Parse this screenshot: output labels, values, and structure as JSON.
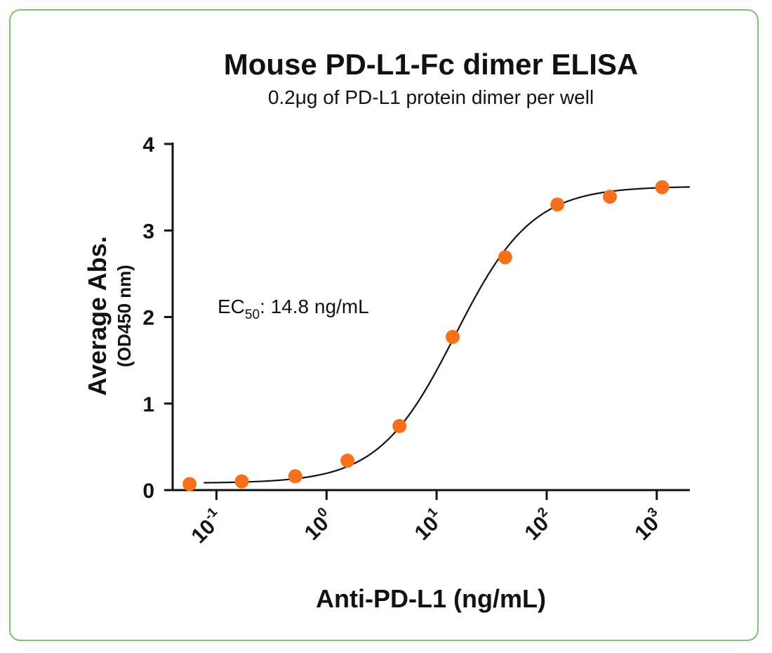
{
  "chart_data": {
    "type": "scatter",
    "title": "Mouse PD-L1-Fc dimer ELISA",
    "subtitle": "0.2μg of PD-L1 protein dimer per well",
    "xlabel": "Anti-PD-L1 (ng/mL)",
    "ylabel": "Average Abs.",
    "ylabel_sub": "(OD450 nm)",
    "x_scale": "log10",
    "xlim": [
      0.04,
      2000
    ],
    "ylim": [
      0,
      4
    ],
    "y_ticks": [
      0,
      1,
      2,
      3,
      4
    ],
    "x_ticks": [
      {
        "base": "10",
        "exp": "-1",
        "value": 0.1
      },
      {
        "base": "10",
        "exp": "0",
        "value": 1
      },
      {
        "base": "10",
        "exp": "1",
        "value": 10
      },
      {
        "base": "10",
        "exp": "2",
        "value": 100
      },
      {
        "base": "10",
        "exp": "3",
        "value": 1000
      }
    ],
    "series": [
      {
        "color": "#f7701c",
        "x": [
          0.057,
          0.17,
          0.52,
          1.55,
          4.6,
          14,
          42,
          125,
          375,
          1120
        ],
        "y": [
          0.07,
          0.1,
          0.16,
          0.34,
          0.74,
          1.77,
          2.69,
          3.3,
          3.39,
          3.5
        ]
      }
    ],
    "fit": {
      "type": "4PL",
      "bottom": 0.08,
      "top": 3.51,
      "ec50": 14.8,
      "hill": 1.25,
      "color": "#111111"
    },
    "annotation": {
      "prefix": "EC",
      "subscript": "50",
      "suffix": ": 14.8 ng/mL"
    },
    "grid": false,
    "legend": "none"
  }
}
